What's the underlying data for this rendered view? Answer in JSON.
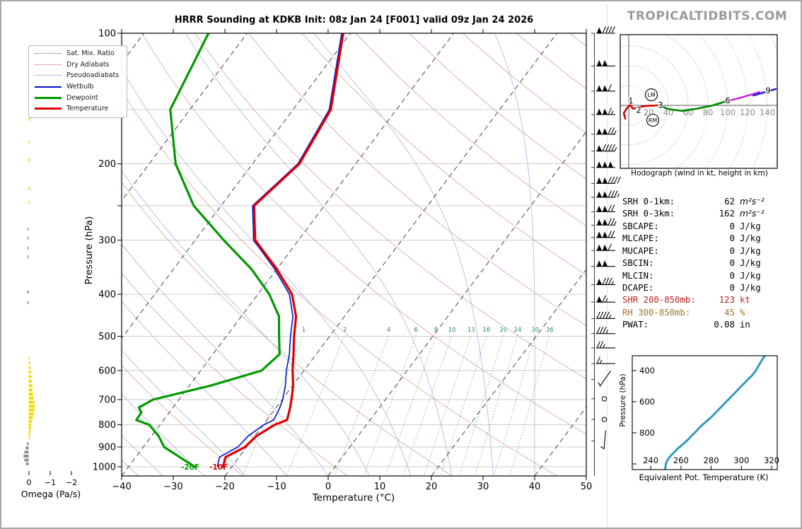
{
  "page": {
    "watermark": "TROPICALTIDBITS.COM"
  },
  "skewt": {
    "title": "HRRR Sounding at KDKB Init: 08z Jan 24 [F001] valid 09z Jan 24 2026",
    "xlabel": "Temperature (°C)",
    "ylabel": "Pressure (hPa)",
    "x_ticks": [
      -40,
      -30,
      -20,
      -10,
      0,
      10,
      20,
      30,
      40,
      50
    ],
    "p_labels": [
      100,
      200,
      300,
      400,
      500,
      600,
      700,
      800,
      900,
      1000
    ],
    "p_gridlines": [
      100,
      150,
      200,
      250,
      300,
      400,
      500,
      600,
      700,
      800,
      900,
      1000
    ],
    "mixing_ratio_labels": [
      1,
      2,
      4,
      6,
      8,
      10,
      13,
      16,
      20,
      24,
      30,
      36
    ],
    "surface_dewp_label": "-20F",
    "surface_temp_label": "-10F",
    "legend": [
      {
        "label": "Sat. Mix. Ratio",
        "style": "dotted",
        "color": "#2e8857",
        "width": 2
      },
      {
        "label": "Dry Adiabats",
        "style": "solid",
        "color": "#dfa6a6",
        "width": 1
      },
      {
        "label": "Pseudoadiabats",
        "style": "solid",
        "color": "#b3b8e6",
        "width": 1
      },
      {
        "label": "Wetbulb",
        "style": "solid",
        "color": "#0011cc",
        "width": 2
      },
      {
        "label": "Dewpoint",
        "style": "solid",
        "color": "#009900",
        "width": 3
      },
      {
        "label": "Temperature",
        "style": "solid",
        "color": "#e00000",
        "width": 3
      }
    ],
    "colors": {
      "temperature": "#e00000",
      "dewpoint": "#009900",
      "wetbulb": "#0011cc",
      "dry_adiabat": "#e0a8a8",
      "pseudoadiabat": "#b4b9e8",
      "isotherm": "#4d4d4d",
      "mixing_ratio": "#2e8857",
      "grid": "#cccccc"
    }
  },
  "omega_panel": {
    "label": "Omega (Pa/s)",
    "ticks": [
      0,
      -1,
      -2
    ],
    "colors": {
      "ascent": "#f0dc00",
      "descent": "#8c8c8c"
    }
  },
  "hodograph": {
    "caption": "Hodograph (wind in kt, height in km)",
    "x_tick_labels": [
      20,
      40,
      60,
      80,
      100,
      120,
      140
    ],
    "ring_step_kt": 20
  },
  "stats": {
    "rows": [
      {
        "label": "SRH 0-1km:",
        "value": "62",
        "unit": "m²s⁻²",
        "unit_italic": true,
        "color": "#000000"
      },
      {
        "label": "SRH 0-3km:",
        "value": "162",
        "unit": "m²s⁻²",
        "unit_italic": true,
        "color": "#000000"
      },
      {
        "label": "SBCAPE:",
        "value": "0",
        "unit": "J/kg",
        "color": "#000000"
      },
      {
        "label": "MLCAPE:",
        "value": "0",
        "unit": "J/kg",
        "color": "#000000"
      },
      {
        "label": "MUCAPE:",
        "value": "0",
        "unit": "J/kg",
        "color": "#000000"
      },
      {
        "label": "SBCIN:",
        "value": "0",
        "unit": "J/kg",
        "color": "#000000"
      },
      {
        "label": "MLCIN:",
        "value": "0",
        "unit": "J/kg",
        "color": "#000000"
      },
      {
        "label": "DCAPE:",
        "value": "0",
        "unit": "J/kg",
        "color": "#000000"
      },
      {
        "label": "SHR 200-850mb:",
        "value": "123",
        "unit": "kt",
        "color": "#bb2222"
      },
      {
        "label": "RH 300-850mb:",
        "value": "45",
        "unit": "%",
        "color": "#a5722c"
      },
      {
        "label": "PWAT:",
        "value": "0.08",
        "unit": "in",
        "color": "#000000"
      }
    ]
  },
  "theta_e_panel": {
    "xlabel": "Equivalent Pot. Temperature (K)",
    "ylabel": "Pressure (hPa)",
    "x_ticks": [
      240,
      260,
      280,
      300,
      320
    ],
    "y_ticks": [
      400,
      600,
      800
    ],
    "color": "#3399bb"
  },
  "chart_data": [
    {
      "type": "line",
      "name": "skewt_sounding",
      "title": "HRRR Sounding at KDKB Init: 08z Jan 24 [F001] valid 09z Jan 24 2026",
      "xlabel": "Temperature (°C)",
      "ylabel": "Pressure (hPa)",
      "xlim": [
        -40,
        50
      ],
      "p_range": [
        100,
        1050
      ],
      "pressure_hpa": [
        100,
        150,
        200,
        250,
        300,
        350,
        400,
        450,
        500,
        550,
        600,
        650,
        700,
        730,
        750,
        780,
        800,
        850,
        900,
        950,
        1000
      ],
      "temperature_c": [
        -61.4,
        -52.7,
        -50.9,
        -53.6,
        -48.4,
        -40.0,
        -33.4,
        -29.4,
        -26.9,
        -24.4,
        -22.2,
        -19.9,
        -18.2,
        -17.3,
        -16.8,
        -16.1,
        -17.8,
        -19.7,
        -20.3,
        -22.6,
        -21.7
      ],
      "dewpoint_c": [
        -87.5,
        -83.8,
        -74.9,
        -65.3,
        -54.5,
        -44.9,
        -37.8,
        -32.7,
        -29.8,
        -27.1,
        -28.2,
        -35.9,
        -45.0,
        -46.6,
        -45.4,
        -45.3,
        -42.1,
        -38.6,
        -36.0,
        -31.5,
        -27.2
      ],
      "wetbulb_c": [
        -61.7,
        -53.0,
        -51.2,
        -53.9,
        -48.7,
        -40.4,
        -33.9,
        -30.0,
        -27.6,
        -25.2,
        -23.4,
        -21.4,
        -19.9,
        -19.3,
        -19.0,
        -18.7,
        -19.9,
        -21.3,
        -21.7,
        -23.8,
        -22.8
      ],
      "surface_temp_label_f": "-10F",
      "surface_dewp_label_f": "-20F",
      "wind_barbs_p_kt": [
        [
          100,
          90
        ],
        [
          119,
          100
        ],
        [
          136,
          110
        ],
        [
          154,
          115
        ],
        [
          171,
          125
        ],
        [
          187,
          95
        ],
        [
          204,
          150
        ],
        [
          222,
          140
        ],
        [
          239,
          135
        ],
        [
          258,
          120
        ],
        [
          277,
          125
        ],
        [
          296,
          120
        ],
        [
          317,
          110
        ],
        [
          345,
          100
        ],
        [
          380,
          85
        ],
        [
          417,
          65
        ],
        [
          455,
          45
        ],
        [
          493,
          35
        ],
        [
          532,
          25
        ],
        [
          578,
          15
        ],
        [
          629,
          5,
          -55
        ],
        [
          697,
          0
        ],
        [
          778,
          0
        ],
        [
          872,
          5,
          -85
        ]
      ],
      "omega_pa_s": [
        [
          120,
          -0.06
        ],
        [
          138,
          -0.06
        ],
        [
          158,
          -0.07
        ],
        [
          178,
          -0.06
        ],
        [
          196,
          -0.06
        ],
        [
          228,
          -0.07
        ],
        [
          246,
          -0.06
        ],
        [
          283,
          0.05
        ],
        [
          297,
          0.05
        ],
        [
          313,
          0.05
        ],
        [
          328,
          0.05
        ],
        [
          395,
          0.07
        ],
        [
          418,
          0.06
        ],
        [
          560,
          -0.05
        ],
        [
          575,
          -0.07
        ],
        [
          590,
          -0.09
        ],
        [
          605,
          -0.11
        ],
        [
          620,
          -0.13
        ],
        [
          635,
          -0.15
        ],
        [
          650,
          -0.17
        ],
        [
          665,
          -0.19
        ],
        [
          680,
          -0.21
        ],
        [
          695,
          -0.24
        ],
        [
          710,
          -0.27
        ],
        [
          725,
          -0.3
        ],
        [
          740,
          -0.28
        ],
        [
          755,
          -0.24
        ],
        [
          770,
          -0.2
        ],
        [
          785,
          -0.16
        ],
        [
          800,
          -0.13
        ],
        [
          815,
          -0.11
        ],
        [
          830,
          -0.09
        ],
        [
          845,
          -0.07
        ],
        [
          860,
          -0.05
        ],
        [
          885,
          0.08
        ],
        [
          905,
          0.14
        ],
        [
          925,
          0.2
        ],
        [
          945,
          0.24
        ],
        [
          965,
          0.2
        ],
        [
          985,
          0.12
        ]
      ]
    },
    {
      "type": "line",
      "name": "hodograph",
      "units": "kt",
      "rings_kt": 20,
      "segments": [
        {
          "layer": "0-3km",
          "color": "#dd0000",
          "points": [
            [
              -3.5,
              -13.5
            ],
            [
              -5,
              -8
            ],
            [
              -2,
              -3
            ],
            [
              1.5,
              0.5
            ],
            [
              4.5,
              -3.5
            ],
            [
              9.5,
              -2
            ],
            [
              18,
              -0.5
            ],
            [
              29.3,
              0
            ]
          ]
        },
        {
          "layer": "3-6km",
          "color": "#008800",
          "points": [
            [
              29.3,
              0
            ],
            [
              41.5,
              -4
            ],
            [
              53.5,
              -5.5
            ],
            [
              68,
              -3.5
            ],
            [
              83,
              -0.5
            ],
            [
              98,
              4
            ]
          ]
        },
        {
          "layer": "6-9km",
          "color": "#bb2fd0",
          "points": [
            [
              98,
              4
            ],
            [
              112,
              7.5
            ],
            [
              126,
              11.5
            ],
            [
              132,
              13.5
            ]
          ]
        },
        {
          "layer": "9km+",
          "color": "#2222dd",
          "points": [
            [
              126,
              10
            ],
            [
              138,
              13.5
            ],
            [
              148.5,
              16.5
            ]
          ]
        },
        {
          "layer": "9km+",
          "color": "#2222dd",
          "points": [
            [
              152.5,
              16.5
            ],
            [
              157,
              16
            ]
          ]
        }
      ],
      "height_labels": [
        [
          "1",
          2.1,
          4.5
        ],
        [
          "2",
          10,
          -4.5
        ],
        [
          "3",
          32.1,
          0.5
        ],
        [
          "6",
          100,
          5
        ],
        [
          "9",
          140.7,
          15
        ]
      ],
      "storm_motion": [
        [
          "LM",
          22.9,
          10.7
        ],
        [
          "RM",
          24.3,
          -15.0
        ]
      ]
    },
    {
      "type": "line",
      "name": "theta_e_profile",
      "xlabel": "Equivalent Pot. Temperature (K)",
      "ylabel": "Pressure (hPa)",
      "xlim": [
        228,
        324
      ],
      "p_range": [
        305,
        1036
      ],
      "points_p_k": [
        [
          1036,
          249.5
        ],
        [
          1000,
          250
        ],
        [
          975,
          251
        ],
        [
          950,
          253
        ],
        [
          925,
          255.5
        ],
        [
          900,
          258
        ],
        [
          875,
          261
        ],
        [
          850,
          264
        ],
        [
          825,
          266.5
        ],
        [
          800,
          269
        ],
        [
          775,
          271.5
        ],
        [
          750,
          274
        ],
        [
          725,
          277
        ],
        [
          700,
          280
        ],
        [
          675,
          282.5
        ],
        [
          650,
          285
        ],
        [
          625,
          287.5
        ],
        [
          600,
          290
        ],
        [
          575,
          292.5
        ],
        [
          550,
          295
        ],
        [
          525,
          297.5
        ],
        [
          500,
          300
        ],
        [
          475,
          302.5
        ],
        [
          450,
          305
        ],
        [
          437,
          306.5
        ],
        [
          425,
          307.5
        ],
        [
          400,
          309.5
        ],
        [
          375,
          311
        ],
        [
          350,
          312.5
        ],
        [
          325,
          314
        ],
        [
          305,
          315.5
        ]
      ]
    }
  ]
}
